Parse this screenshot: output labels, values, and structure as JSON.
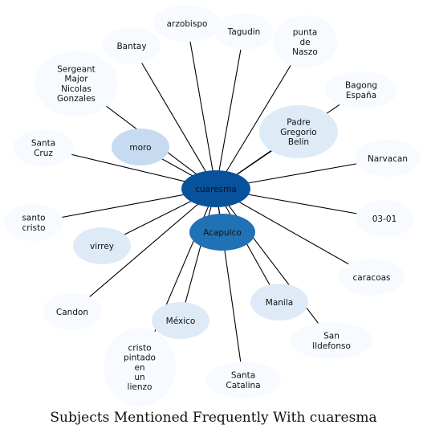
{
  "title": "Subjects Mentioned Frequently With cuaresma",
  "center": {
    "label": "cuaresma",
    "color": "#08519c",
    "text_color": "#111111"
  },
  "nodes": [
    {
      "id": "arzobispo",
      "lines": [
        "arzobispo"
      ],
      "color": "#f7fbff"
    },
    {
      "id": "tagudin",
      "lines": [
        "Tagudin"
      ],
      "color": "#f7fbff"
    },
    {
      "id": "punta-de-naszo",
      "lines": [
        "punta",
        "de",
        "Naszo"
      ],
      "color": "#f7fbff"
    },
    {
      "id": "bantay",
      "lines": [
        "Bantay"
      ],
      "color": "#f7fbff"
    },
    {
      "id": "bagong-espana",
      "lines": [
        "Bagong",
        "España"
      ],
      "color": "#f7fbff"
    },
    {
      "id": "sergeant-major",
      "lines": [
        "Sergeant",
        "Major",
        "Nicolas",
        "Gonzales"
      ],
      "color": "#f7fbff"
    },
    {
      "id": "padre-gregorio-belin",
      "lines": [
        "Padre",
        "Gregorio",
        "Belin"
      ],
      "color": "#deebf7"
    },
    {
      "id": "santa-cruz",
      "lines": [
        "Santa",
        "Cruz"
      ],
      "color": "#f7fbff"
    },
    {
      "id": "moro",
      "lines": [
        "moro"
      ],
      "color": "#c6dbef"
    },
    {
      "id": "narvacan",
      "lines": [
        "Narvacan"
      ],
      "color": "#f7fbff"
    },
    {
      "id": "acapulco",
      "lines": [
        "Acapulco"
      ],
      "color": "#2171b5"
    },
    {
      "id": "santo-cristo",
      "lines": [
        "santo",
        "cristo"
      ],
      "color": "#f7fbff"
    },
    {
      "id": "03-01",
      "lines": [
        "03-01"
      ],
      "color": "#f7fbff"
    },
    {
      "id": "virrey",
      "lines": [
        "virrey"
      ],
      "color": "#deebf7"
    },
    {
      "id": "caracoas",
      "lines": [
        "caracoas"
      ],
      "color": "#f7fbff"
    },
    {
      "id": "manila",
      "lines": [
        "Manila"
      ],
      "color": "#deebf7"
    },
    {
      "id": "candon",
      "lines": [
        "Candon"
      ],
      "color": "#f7fbff"
    },
    {
      "id": "mexico",
      "lines": [
        "México"
      ],
      "color": "#deebf7"
    },
    {
      "id": "san-ildefonso",
      "lines": [
        "San",
        "Ildefonso"
      ],
      "color": "#f7fbff"
    },
    {
      "id": "cristo-pintado",
      "lines": [
        "cristo",
        "pintado",
        "en",
        "un",
        "lienzo"
      ],
      "color": "#f7fbff"
    },
    {
      "id": "santa-catalina",
      "lines": [
        "Santa",
        "Catalina"
      ],
      "color": "#f7fbff"
    }
  ]
}
